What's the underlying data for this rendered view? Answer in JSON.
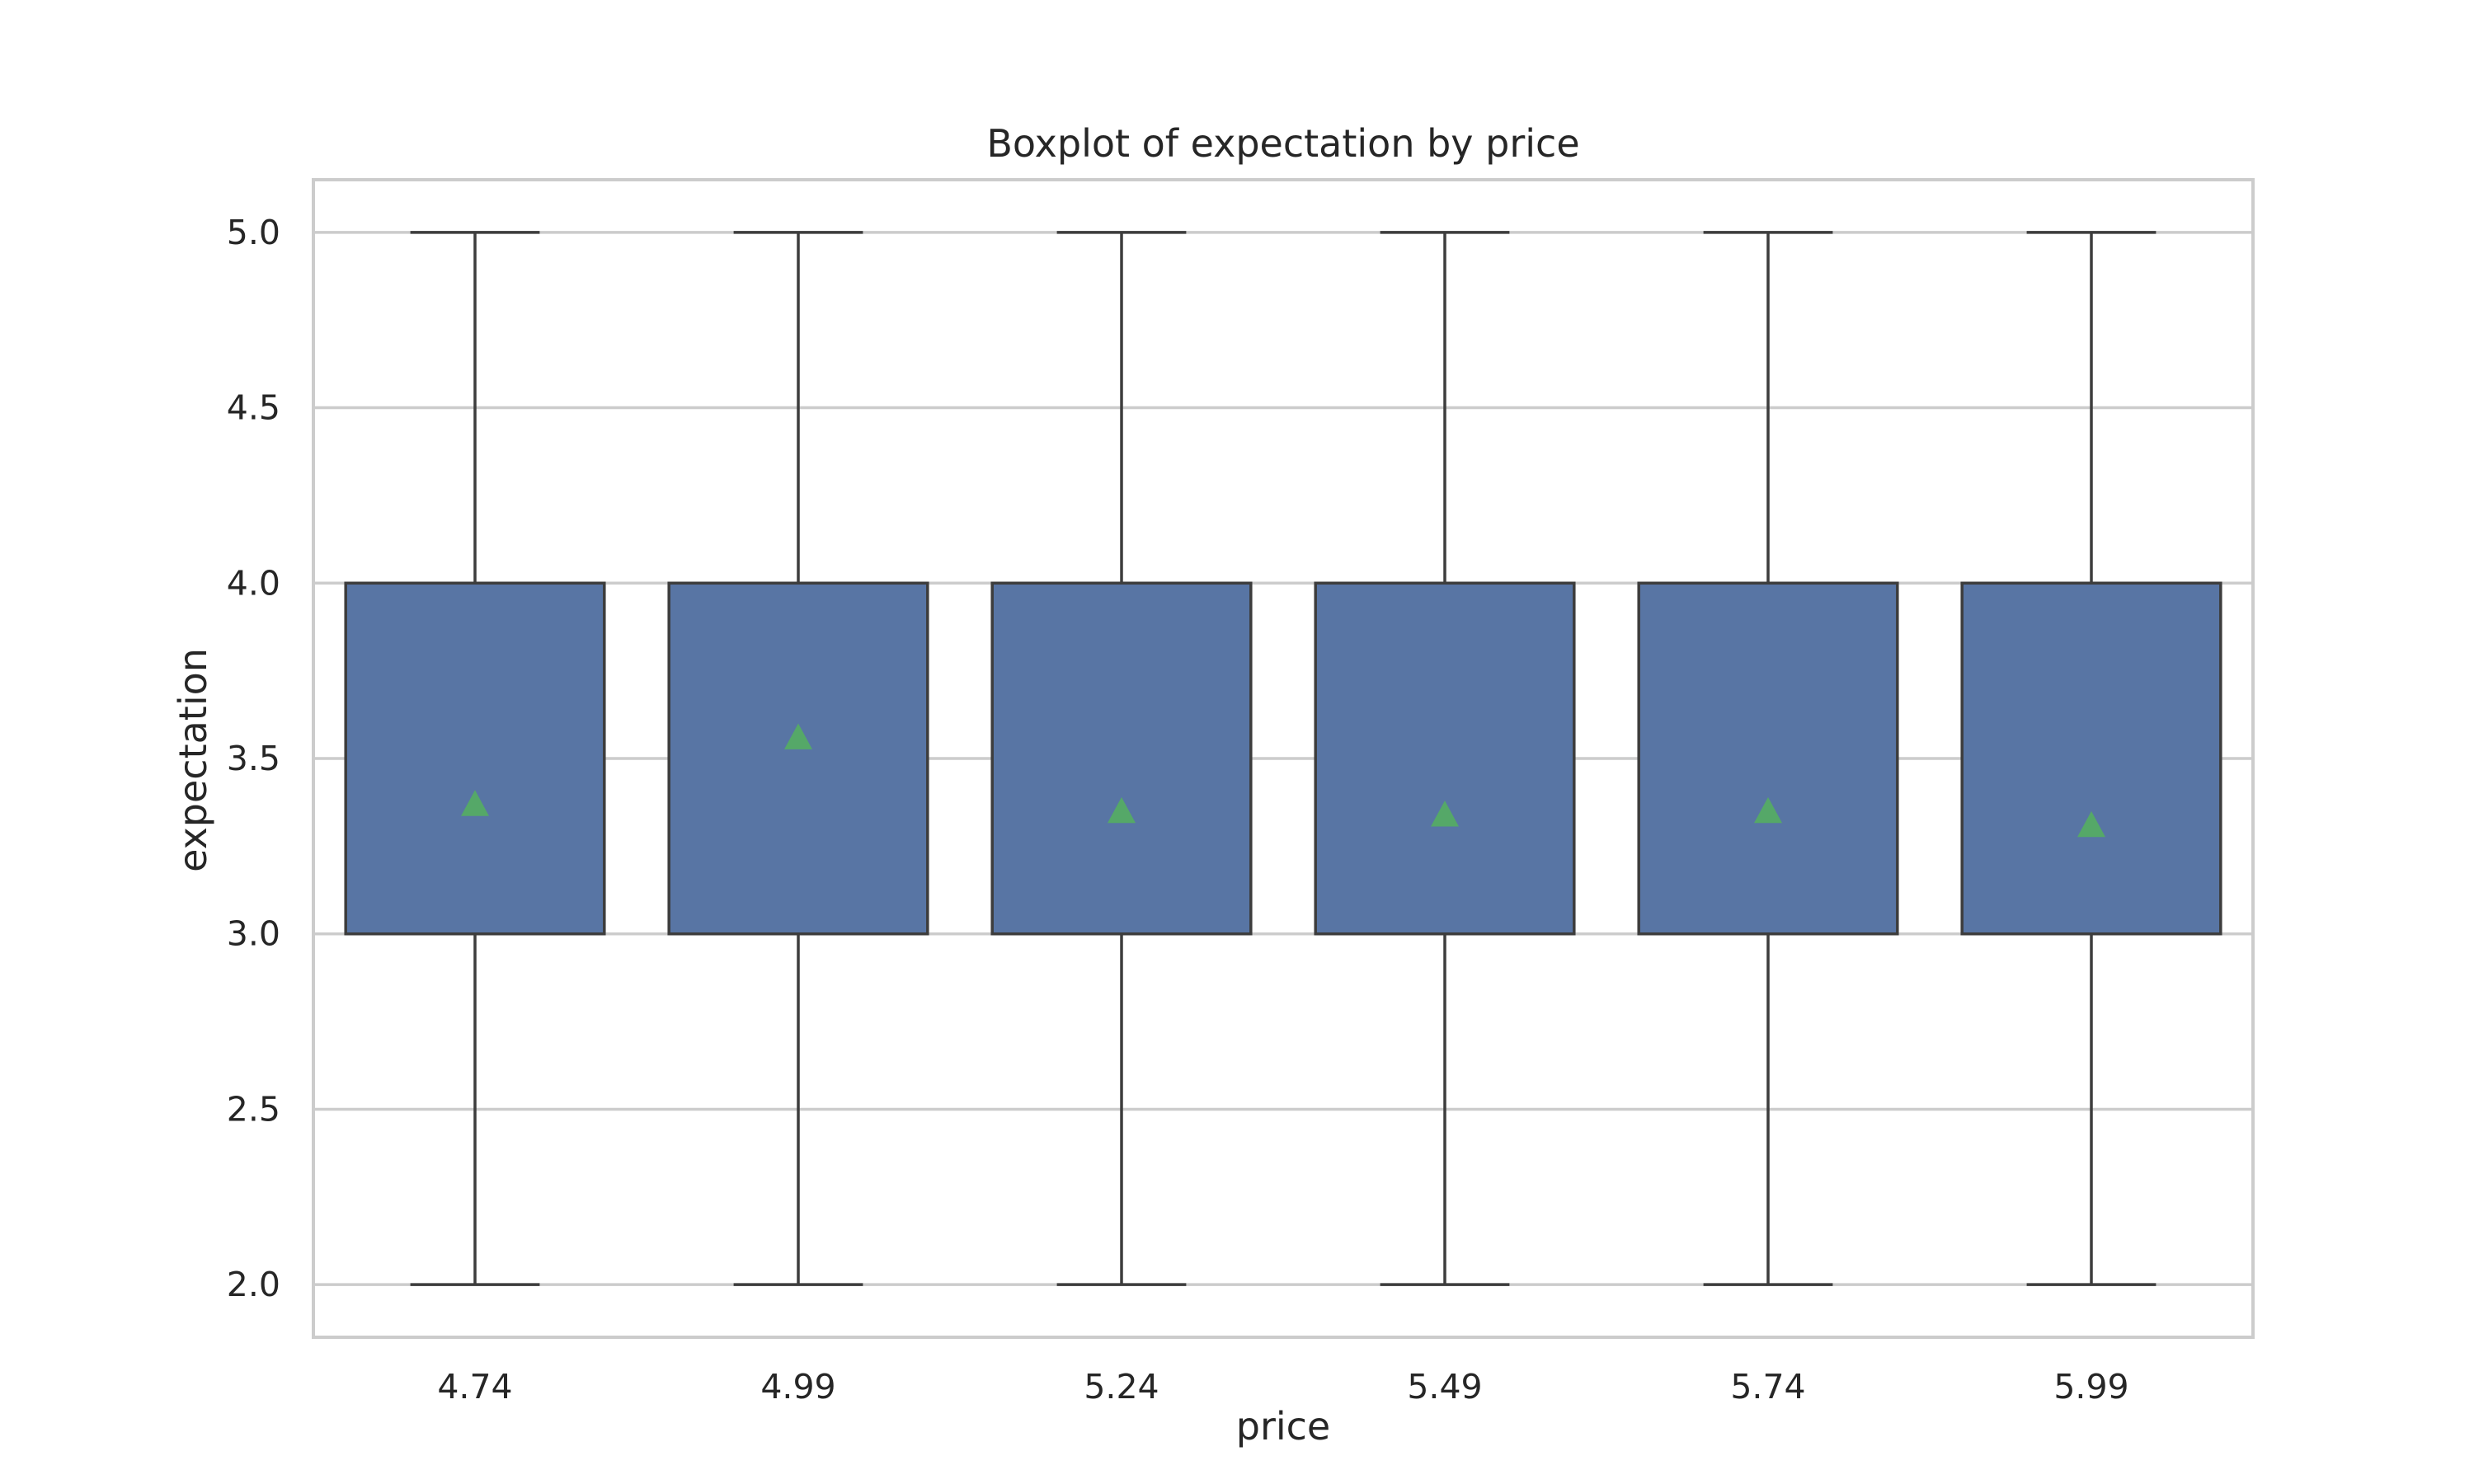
{
  "chart_data": {
    "type": "box",
    "title": "Boxplot of expectation by price",
    "xlabel": "price",
    "ylabel": "expectation",
    "categories": [
      "4.74",
      "4.99",
      "5.24",
      "5.49",
      "5.74",
      "5.99"
    ],
    "ylim": [
      1.85,
      5.15
    ],
    "yticks": [
      2.0,
      2.5,
      3.0,
      3.5,
      4.0,
      4.5,
      5.0
    ],
    "ytick_labels": [
      "2.0",
      "2.5",
      "3.0",
      "3.5",
      "4.0",
      "4.5",
      "5.0"
    ],
    "grid": true,
    "box_color": "#5875a4",
    "mean_marker_color": "#55a868",
    "boxes": [
      {
        "category": "4.74",
        "whisker_low": 2.0,
        "q1": 3.0,
        "median": 3.0,
        "q3": 4.0,
        "whisker_high": 5.0,
        "mean": 3.37
      },
      {
        "category": "4.99",
        "whisker_low": 2.0,
        "q1": 3.0,
        "median": 3.0,
        "q3": 4.0,
        "whisker_high": 5.0,
        "mean": 3.56
      },
      {
        "category": "5.24",
        "whisker_low": 2.0,
        "q1": 3.0,
        "median": 3.0,
        "q3": 4.0,
        "whisker_high": 5.0,
        "mean": 3.35
      },
      {
        "category": "5.49",
        "whisker_low": 2.0,
        "q1": 3.0,
        "median": 3.0,
        "q3": 4.0,
        "whisker_high": 5.0,
        "mean": 3.34
      },
      {
        "category": "5.74",
        "whisker_low": 2.0,
        "q1": 3.0,
        "median": 3.0,
        "q3": 4.0,
        "whisker_high": 5.0,
        "mean": 3.35
      },
      {
        "category": "5.99",
        "whisker_low": 2.0,
        "q1": 3.0,
        "median": 3.0,
        "q3": 4.0,
        "whisker_high": 5.0,
        "mean": 3.31
      }
    ]
  }
}
